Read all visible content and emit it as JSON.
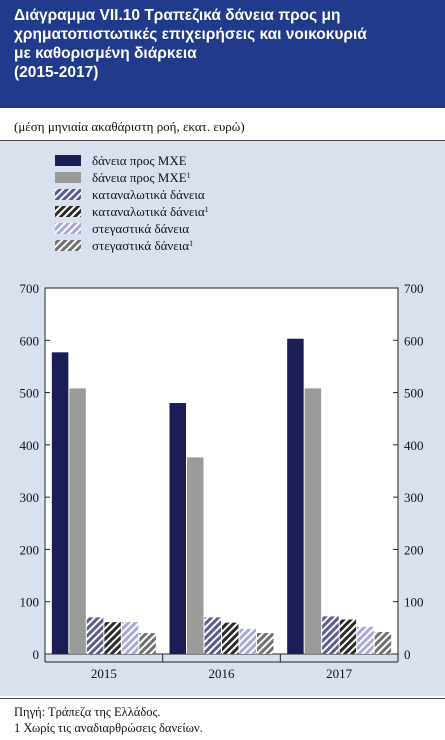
{
  "title": {
    "lines": [
      "Διάγραμμα VII.10  Τραπεζικά δάνεια προς μη",
      "χρηματοπιστωτικές επιχειρήσεις και νοικοκυριά",
      "με καθορισμένη διάρκεια",
      "(2015-2017)"
    ]
  },
  "subtitle": "(μέση μηνιαία ακαθάριστη ροή, εκατ. ευρώ)",
  "source": {
    "line1": "Πηγή: Τράπεζα της Ελλάδος.",
    "line2": "1 Χωρίς τις αναδιαρθρώσεις δανείων."
  },
  "colors": {
    "header_bg": "#213a8c",
    "chart_bg": "#d9e0ee",
    "mxe": "#1d1d55",
    "mxe_excl": "#9a9a9a",
    "consumer": "#5b5b8f",
    "consumer_excl": "#2a2a2a",
    "housing": "#a9a9d4",
    "housing_excl": "#707070"
  },
  "chart_data": {
    "type": "bar",
    "categories": [
      "2015",
      "2016",
      "2017"
    ],
    "ylim": [
      0,
      700
    ],
    "yticks": [
      0,
      100,
      200,
      300,
      400,
      500,
      600,
      700
    ],
    "y_axis_both_sides": true,
    "grid": false,
    "legend_position": "top-left",
    "series": [
      {
        "name": "δάνεια προς ΜΧΕ",
        "sup": "",
        "values": [
          577,
          480,
          603
        ],
        "pattern": "solid",
        "color": "#1d1d55"
      },
      {
        "name": "δάνεια προς ΜΧΕ",
        "sup": "1",
        "values": [
          508,
          376,
          508
        ],
        "pattern": "solid",
        "color": "#9a9a9a"
      },
      {
        "name": "καταναλωτικά δάνεια",
        "sup": "",
        "values": [
          70,
          70,
          72
        ],
        "pattern": "hatch",
        "color": "#5b5b8f"
      },
      {
        "name": "καταναλωτικά δάνεια",
        "sup": "1",
        "values": [
          61,
          60,
          66
        ],
        "pattern": "hatch",
        "color": "#2a2a2a"
      },
      {
        "name": "στεγαστικά δάνεια",
        "sup": "",
        "values": [
          61,
          48,
          52
        ],
        "pattern": "hatch",
        "color": "#a9a9d4"
      },
      {
        "name": "στεγαστικά δάνεια",
        "sup": "1",
        "values": [
          40,
          40,
          42
        ],
        "pattern": "hatch",
        "color": "#707070"
      }
    ]
  }
}
